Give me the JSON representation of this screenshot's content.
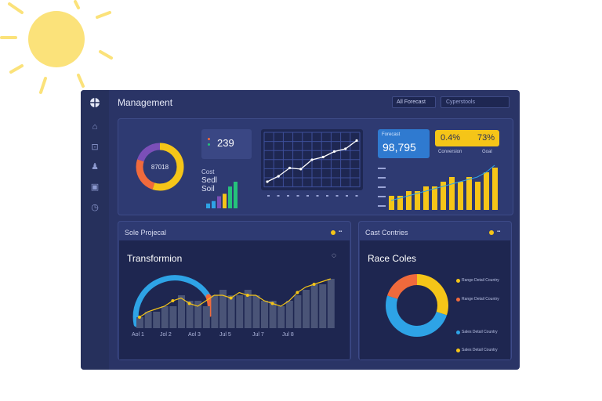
{
  "app": {
    "title": "Management"
  },
  "toolbar": {
    "filter_label": "All Forecast",
    "search_placeholder": "Cyperstools"
  },
  "rail_icons": [
    "grid-icon",
    "home-icon",
    "inbox-icon",
    "users-icon",
    "briefcase-icon",
    "clock-icon"
  ],
  "kpi": {
    "donut_value": "87018",
    "stat_value": "239",
    "labels": [
      "Cost",
      "Sedl",
      "Soil"
    ],
    "blue_caption": "Forecast",
    "blue_value": "98,795",
    "yellow_left": "0.4%",
    "yellow_right": "73%",
    "yellow_sub_left": "Conversion",
    "yellow_sub_right": "Goal"
  },
  "panels": {
    "left": {
      "header": "Sole Projecal",
      "title": "Transformion",
      "xticks": [
        "Aol 1",
        "Jol 2",
        "Aol 3",
        "Jul 5",
        "Jul 7",
        "Jul 8"
      ]
    },
    "right": {
      "header": "Cast Contries",
      "title": "Race Coles",
      "legend": [
        "Range Detail Country",
        "Range Detail Country",
        "Sales Detail Country",
        "Sales Detail Country"
      ]
    }
  },
  "colors": {
    "yellow": "#f5c518",
    "blue": "#2ea3e6",
    "orange": "#f06a3c",
    "purple": "#7b4fb8",
    "green": "#25c27b"
  },
  "chart_data": [
    {
      "type": "pie",
      "title": "",
      "categories": [
        "yellow",
        "orange",
        "purple"
      ],
      "values": [
        55,
        25,
        20
      ]
    },
    {
      "type": "bar",
      "title": "",
      "categories": [
        "1",
        "2",
        "3",
        "4",
        "5",
        "6"
      ],
      "values": [
        2,
        3,
        5,
        6,
        9,
        11
      ]
    },
    {
      "type": "line",
      "title": "",
      "x": [
        0,
        1,
        2,
        3,
        4,
        5,
        6,
        7,
        8
      ],
      "values": [
        1,
        2,
        3.5,
        3.3,
        5,
        5.5,
        6.5,
        7,
        8.5
      ],
      "ylim": [
        0,
        10
      ]
    },
    {
      "type": "bar",
      "title": "",
      "categories": [
        "1",
        "2",
        "3",
        "4",
        "5",
        "6",
        "7",
        "8",
        "9",
        "10",
        "11",
        "12",
        "13"
      ],
      "values": [
        3,
        3,
        4,
        4,
        5,
        5,
        6,
        7,
        6,
        7,
        6,
        8,
        9
      ],
      "line": [
        2,
        2.5,
        3,
        3.5,
        4,
        4.5,
        5,
        5.5,
        6,
        6.5,
        7,
        8,
        9.5
      ],
      "ylim": [
        0,
        10
      ]
    },
    {
      "type": "area",
      "title": "",
      "values": [
        2,
        3,
        3,
        4,
        4,
        6,
        5,
        5,
        4,
        6,
        7,
        6,
        6,
        7,
        6,
        5,
        5,
        4,
        5,
        6,
        7,
        8,
        8,
        9
      ],
      "line": [
        2,
        3,
        3.5,
        4,
        5,
        5.5,
        4.5,
        4,
        5,
        6,
        6,
        5.5,
        6.5,
        6,
        6,
        5,
        4.5,
        4,
        5,
        6.5,
        7.5,
        8,
        8.5,
        9
      ],
      "ylim": [
        0,
        10
      ]
    },
    {
      "type": "pie",
      "title": "",
      "categories": [
        "yellow",
        "blue",
        "orange"
      ],
      "values": [
        30,
        50,
        20
      ]
    }
  ]
}
